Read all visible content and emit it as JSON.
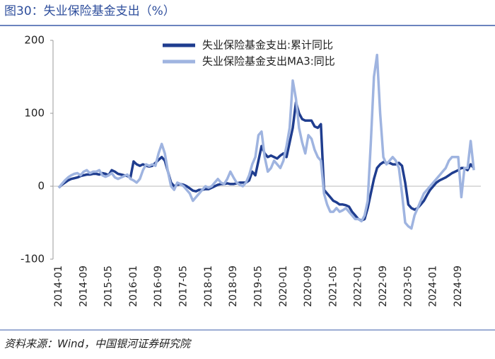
{
  "chart_data": {
    "type": "line",
    "title": "图30：失业保险基金支出（%）",
    "source": "资料来源：Wind，中国银河证券研究院",
    "legend": "top",
    "categories": [
      "2014-01",
      null,
      null,
      null,
      null,
      null,
      null,
      null,
      "2014-09",
      null,
      null,
      null,
      null,
      null,
      null,
      null,
      "2015-05",
      null,
      null,
      null,
      null,
      null,
      null,
      null,
      "2016-01",
      null,
      null,
      null,
      null,
      null,
      null,
      null,
      "2016-09",
      null,
      null,
      null,
      null,
      null,
      null,
      null,
      "2017-05",
      null,
      null,
      null,
      null,
      null,
      null,
      null,
      "2018-01",
      null,
      null,
      null,
      null,
      null,
      null,
      null,
      "2018-09",
      null,
      null,
      null,
      null,
      null,
      null,
      null,
      "2019-05",
      null,
      null,
      null,
      null,
      null,
      null,
      null,
      "2020-01",
      null,
      null,
      null,
      null,
      null,
      null,
      null,
      "2020-09",
      null,
      null,
      null,
      null,
      null,
      null,
      null,
      "2021-05",
      null,
      null,
      null,
      null,
      null,
      null,
      null,
      "2022-01",
      null,
      null,
      null,
      null,
      null,
      null,
      null,
      "2022-09",
      null,
      null,
      null,
      null,
      null,
      null,
      null,
      "2023-05",
      null,
      null,
      null,
      null,
      null,
      null,
      null,
      "2024-01",
      null,
      null,
      null,
      null,
      null,
      null,
      null,
      "2024-09",
      null,
      null,
      null,
      null,
      null
    ],
    "series": [
      {
        "name": "失业保险基金支出:累计同比",
        "color": "#1f3d8f",
        "values": [
          -2,
          2,
          5,
          8,
          10,
          11,
          12,
          14,
          15,
          16,
          16,
          17,
          17,
          16,
          18,
          17,
          15,
          22,
          20,
          17,
          16,
          15,
          14,
          12,
          34,
          30,
          28,
          30,
          28,
          27,
          28,
          32,
          36,
          40,
          35,
          20,
          5,
          0,
          2,
          3,
          2,
          0,
          -3,
          -6,
          -7,
          -5,
          -5,
          -4,
          -4,
          -2,
          0,
          2,
          3,
          3,
          4,
          3,
          3,
          4,
          5,
          5,
          5,
          8,
          20,
          15,
          35,
          55,
          45,
          40,
          42,
          40,
          38,
          42,
          45,
          40,
          60,
          80,
          115,
          100,
          92,
          90,
          90,
          90,
          82,
          80,
          85,
          -5,
          -10,
          -15,
          -20,
          -22,
          -25,
          -25,
          -26,
          -28,
          -35,
          -40,
          -45,
          -47,
          -45,
          -30,
          -10,
          10,
          25,
          30,
          33,
          32,
          32,
          30,
          30,
          32,
          28,
          5,
          -25,
          -30,
          -32,
          -30,
          -25,
          -20,
          -12,
          -5,
          0,
          5,
          8,
          10,
          12,
          15,
          18,
          20,
          22,
          25,
          25,
          22,
          30,
          25
        ]
      },
      {
        "name": "失业保险基金支出MA3:同比",
        "color": "#9fb4e0",
        "values": [
          -2,
          3,
          8,
          12,
          15,
          17,
          18,
          15,
          20,
          22,
          18,
          20,
          20,
          22,
          15,
          13,
          15,
          18,
          12,
          10,
          12,
          14,
          16,
          10,
          8,
          5,
          10,
          22,
          30,
          28,
          30,
          28,
          45,
          58,
          45,
          20,
          0,
          -5,
          5,
          3,
          0,
          -5,
          -10,
          -20,
          -15,
          -10,
          -5,
          0,
          -2,
          0,
          5,
          10,
          5,
          3,
          10,
          20,
          12,
          5,
          2,
          0,
          5,
          15,
          30,
          40,
          70,
          75,
          40,
          20,
          25,
          35,
          30,
          25,
          35,
          55,
          80,
          145,
          120,
          80,
          60,
          45,
          70,
          65,
          50,
          40,
          35,
          -10,
          -25,
          -35,
          -35,
          -30,
          -35,
          -33,
          -30,
          -35,
          -40,
          -45,
          -45,
          -48,
          -40,
          -20,
          60,
          150,
          180,
          100,
          40,
          30,
          35,
          40,
          35,
          25,
          -10,
          -50,
          -55,
          -58,
          -40,
          -30,
          -20,
          -10,
          -5,
          0,
          5,
          10,
          15,
          20,
          25,
          35,
          40,
          40,
          40,
          -15,
          25,
          25,
          62,
          22
        ]
      }
    ],
    "ylim": [
      -100,
      200
    ],
    "yticks": [
      -100,
      0,
      100,
      200
    ]
  }
}
